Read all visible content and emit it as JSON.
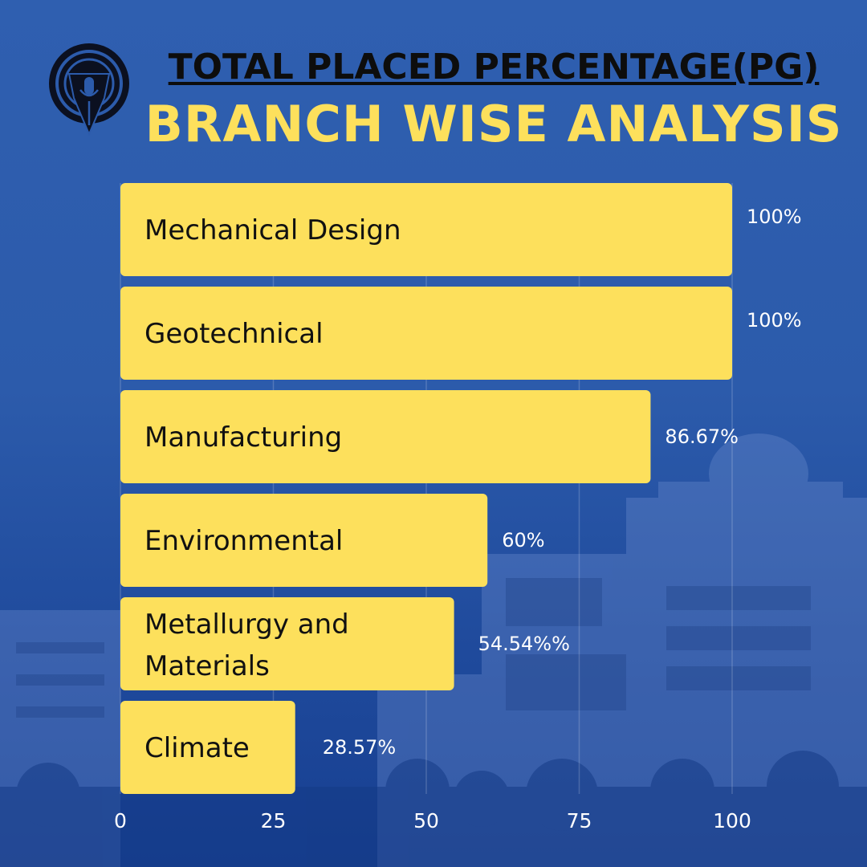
{
  "header": {
    "title": " TOTAL PLACED PERCENTAGE(PG)",
    "subtitle": "BRANCH WISE ANALYSIS",
    "logo_icon": "pen-nib-microphone-icon"
  },
  "colors": {
    "background": "#2c5bab",
    "bar": "#fde05c",
    "title": "#0d0d0d",
    "subtitle": "#fde05c",
    "value_label": "#ffffff",
    "category_label": "#111111"
  },
  "chart_data": {
    "type": "bar",
    "orientation": "horizontal",
    "categories": [
      "Mechanical Design",
      "Geotechnical",
      "Manufacturing",
      "Environmental",
      "Metallurgy and Materials",
      "Climate"
    ],
    "values": [
      100,
      100,
      86.67,
      60,
      54.54,
      28.57
    ],
    "value_labels": [
      "100%",
      "100%",
      "86.67%",
      "60%",
      "54.54%%",
      "28.57%"
    ],
    "xticks": [
      "0",
      "25",
      "50",
      "75",
      "100"
    ],
    "xlim": [
      0,
      100
    ],
    "grid": true,
    "title": " TOTAL PLACED PERCENTAGE(PG)",
    "subtitle": "BRANCH WISE ANALYSIS"
  }
}
